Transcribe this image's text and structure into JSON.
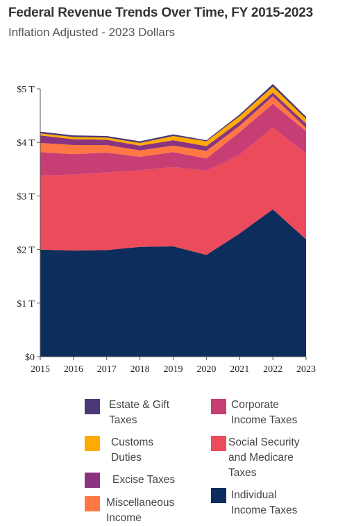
{
  "title": "Federal Revenue Trends Over Time, FY 2015-2023",
  "subtitle": "Inflation Adjusted - 2023 Dollars",
  "chart_data": {
    "type": "area",
    "stacked": true,
    "x": [
      2015,
      2016,
      2017,
      2018,
      2019,
      2020,
      2021,
      2022,
      2023
    ],
    "x_ticks": [
      "2015",
      "2016",
      "2017",
      "2018",
      "2019",
      "2020",
      "2021",
      "2022",
      "2023"
    ],
    "y_ticks": [
      "$0",
      "$1 T",
      "$2 T",
      "$3 T",
      "$4 T",
      "$5 T"
    ],
    "ylim": [
      0,
      5
    ],
    "grid": false,
    "legend_position": "bottom",
    "series": [
      {
        "name": "Individual Income Taxes",
        "color": "#0d2d5c",
        "values": [
          2.0,
          1.98,
          1.99,
          2.05,
          2.06,
          1.9,
          2.3,
          2.75,
          2.19
        ]
      },
      {
        "name": "Social Security and Medicare Taxes",
        "color": "#eb4b5b",
        "values": [
          1.38,
          1.42,
          1.45,
          1.43,
          1.48,
          1.57,
          1.47,
          1.53,
          1.6
        ]
      },
      {
        "name": "Corporate Income Taxes",
        "color": "#c73e75",
        "values": [
          0.44,
          0.38,
          0.37,
          0.25,
          0.28,
          0.23,
          0.42,
          0.44,
          0.42
        ]
      },
      {
        "name": "Miscellaneous Income",
        "color": "#ff7843",
        "values": [
          0.17,
          0.17,
          0.14,
          0.12,
          0.12,
          0.14,
          0.12,
          0.14,
          0.06
        ]
      },
      {
        "name": "Excise Taxes",
        "color": "#8a3480",
        "values": [
          0.14,
          0.11,
          0.1,
          0.09,
          0.1,
          0.09,
          0.08,
          0.07,
          0.08
        ]
      },
      {
        "name": "Customs Duties",
        "color": "#ffaa00",
        "values": [
          0.04,
          0.04,
          0.04,
          0.05,
          0.08,
          0.09,
          0.1,
          0.11,
          0.09
        ]
      },
      {
        "name": "Estate & Gift Taxes",
        "color": "#4a3878",
        "values": [
          0.03,
          0.03,
          0.03,
          0.03,
          0.03,
          0.02,
          0.03,
          0.05,
          0.04
        ]
      }
    ]
  },
  "legend": {
    "estate": {
      "line1": "Estate & Gift",
      "line2": "Taxes",
      "color": "#4a3878"
    },
    "customs": {
      "line1": "Customs",
      "line2": "Duties",
      "color": "#ffaa00"
    },
    "excise": {
      "line1": "Excise Taxes",
      "color": "#8a3480"
    },
    "misc": {
      "line1": "Miscellaneous",
      "line2": "Income",
      "color": "#ff7843"
    },
    "corporate": {
      "line1": "Corporate",
      "line2": "Income Taxes",
      "color": "#c73e75"
    },
    "social": {
      "line1": "Social Security",
      "line2": "and Medicare",
      "line3": "Taxes",
      "color": "#eb4b5b"
    },
    "individual": {
      "line1": "Individual",
      "line2": "Income Taxes",
      "color": "#0d2d5c"
    }
  }
}
